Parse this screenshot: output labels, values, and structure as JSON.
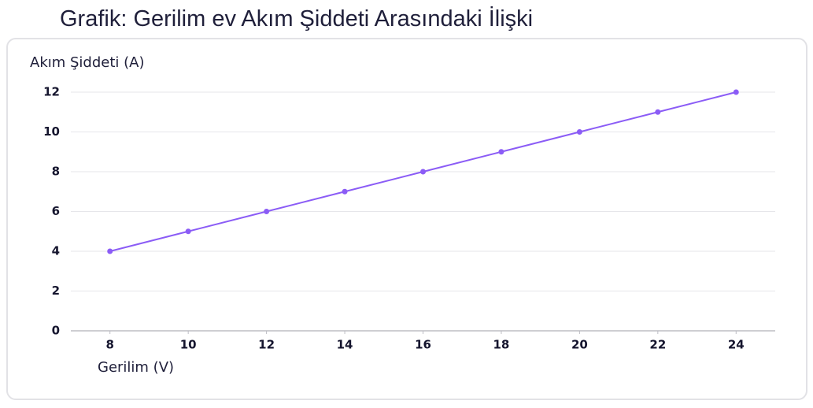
{
  "chart_data": {
    "type": "line",
    "title": "Grafik: Gerilim ev Akım Şiddeti Arasındaki İlişki",
    "x_label": "Gerilim (V)",
    "y_label": "Akım Şiddeti (A)",
    "x": [
      8,
      10,
      12,
      14,
      16,
      18,
      20,
      22,
      24
    ],
    "series": [
      {
        "name": "Akım Şiddeti (A)",
        "color": "#8b5cf6",
        "values": [
          4,
          5,
          6,
          7,
          8,
          9,
          10,
          11,
          12
        ]
      }
    ],
    "xlim": [
      7,
      25
    ],
    "xticks": [
      8,
      10,
      12,
      14,
      16,
      18,
      20,
      22,
      24
    ],
    "ylim": [
      0,
      12
    ],
    "yticks": [
      0,
      2,
      4,
      6,
      8,
      10,
      12
    ],
    "grid": true
  }
}
